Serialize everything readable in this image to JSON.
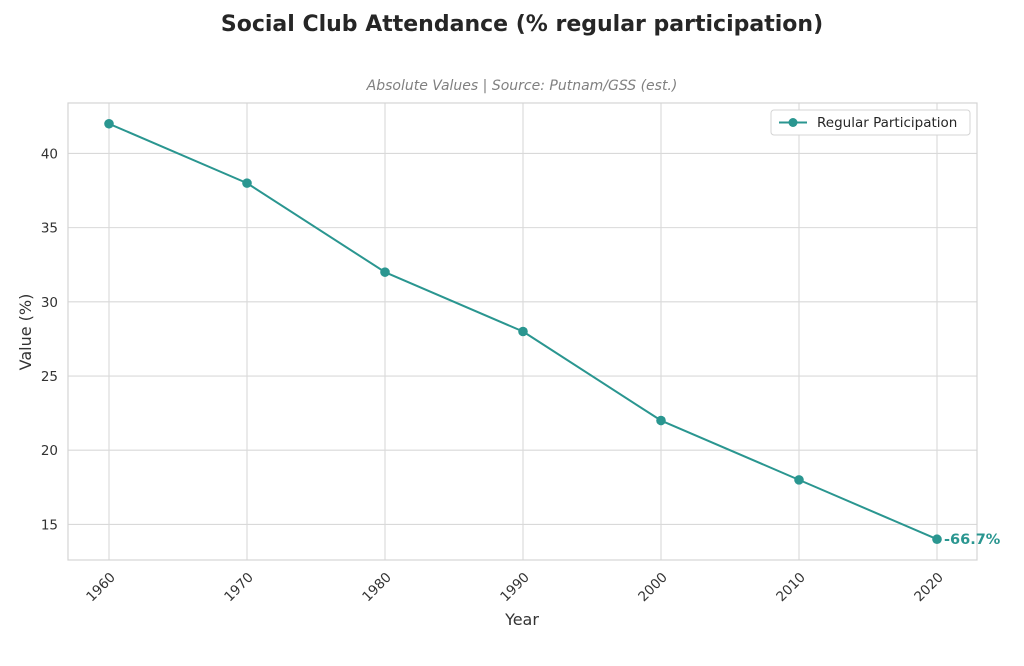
{
  "chart_data": {
    "type": "line",
    "title": "Social Club Attendance (% regular participation)",
    "subtitle": "Absolute Values | Source: Putnam/GSS (est.)",
    "xlabel": "Year",
    "ylabel": "Value (%)",
    "x": [
      "1960",
      "1970",
      "1980",
      "1990",
      "2000",
      "2010",
      "2020"
    ],
    "series": [
      {
        "name": "Regular Participation",
        "color": "#2a9690",
        "values": [
          42,
          38,
          32,
          28,
          22,
          18,
          14
        ]
      }
    ],
    "yticks": [
      15,
      20,
      25,
      30,
      35,
      40
    ],
    "ylim": [
      12.6,
      43.4
    ],
    "grid": true,
    "legend": {
      "placement": "top-right",
      "entries": [
        "Regular Participation"
      ]
    },
    "annotations": [
      {
        "x": "2020",
        "text": "-66.7%",
        "color": "#2a9690"
      }
    ]
  }
}
